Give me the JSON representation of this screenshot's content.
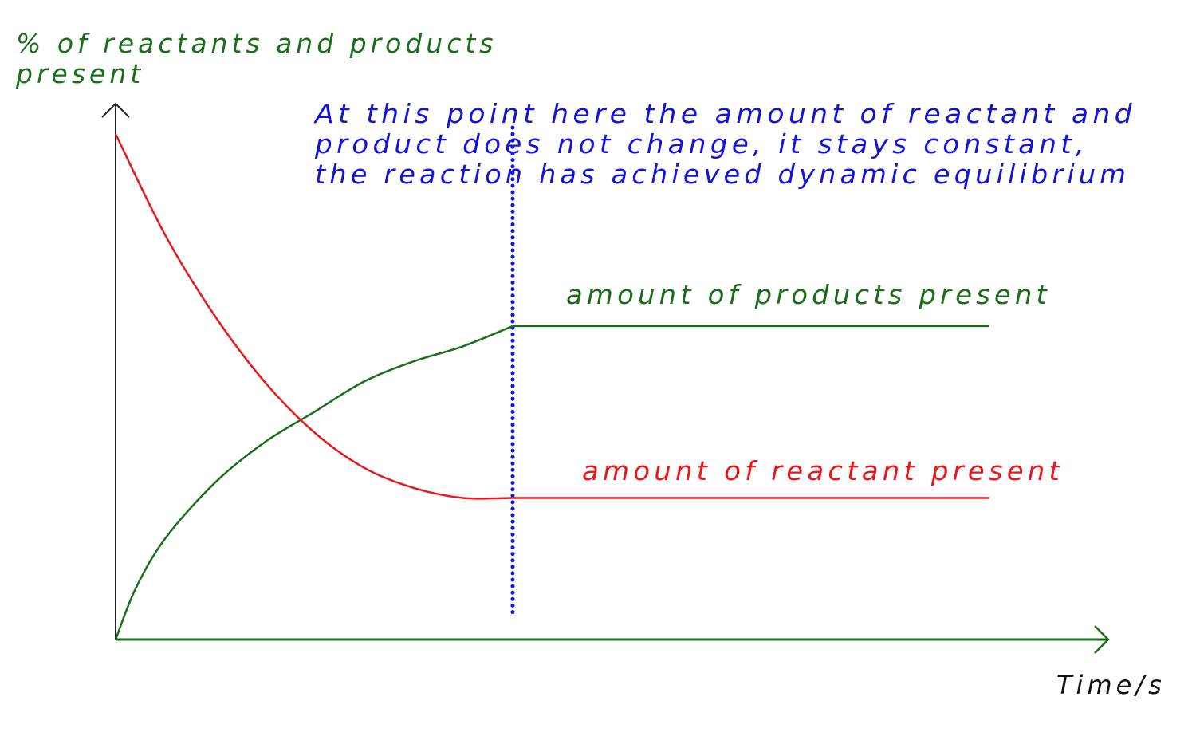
{
  "chart_data": {
    "type": "line",
    "title": "",
    "ylabel_lines": [
      "% of reactants and products",
      "present"
    ],
    "xlabel": "Time/s",
    "annotation_lines": [
      "At this point here the amount of reactant and",
      "product does not change, it stays constant,",
      "the reaction has achieved dynamic equilibrium"
    ],
    "grid": false,
    "xlim": [
      0,
      100
    ],
    "ylim": [
      0,
      100
    ],
    "equilibrium_x": 40,
    "series": [
      {
        "name": "amount of products present",
        "color": "#1a6e1a",
        "x": [
          0,
          2,
          5,
          10,
          15,
          20,
          25,
          30,
          35,
          40,
          60,
          80,
          88
        ],
        "y": [
          0,
          10,
          20,
          31,
          39,
          45,
          51,
          55,
          58,
          62,
          62,
          62,
          62
        ]
      },
      {
        "name": "amount of reactant present",
        "color": "#e8171b",
        "x": [
          0,
          5,
          10,
          15,
          20,
          25,
          30,
          35,
          40,
          60,
          80,
          88
        ],
        "y": [
          100,
          80,
          64,
          51,
          41,
          34,
          30,
          28,
          28,
          28,
          28,
          28
        ]
      }
    ],
    "colors": {
      "axis_x": "#1a6e1a",
      "axis_y": "#222222",
      "equilibrium_line": "#1414d8",
      "annotation": "#1414d8",
      "ylabel": "#1a6e1a",
      "xlabel": "#111111"
    }
  }
}
